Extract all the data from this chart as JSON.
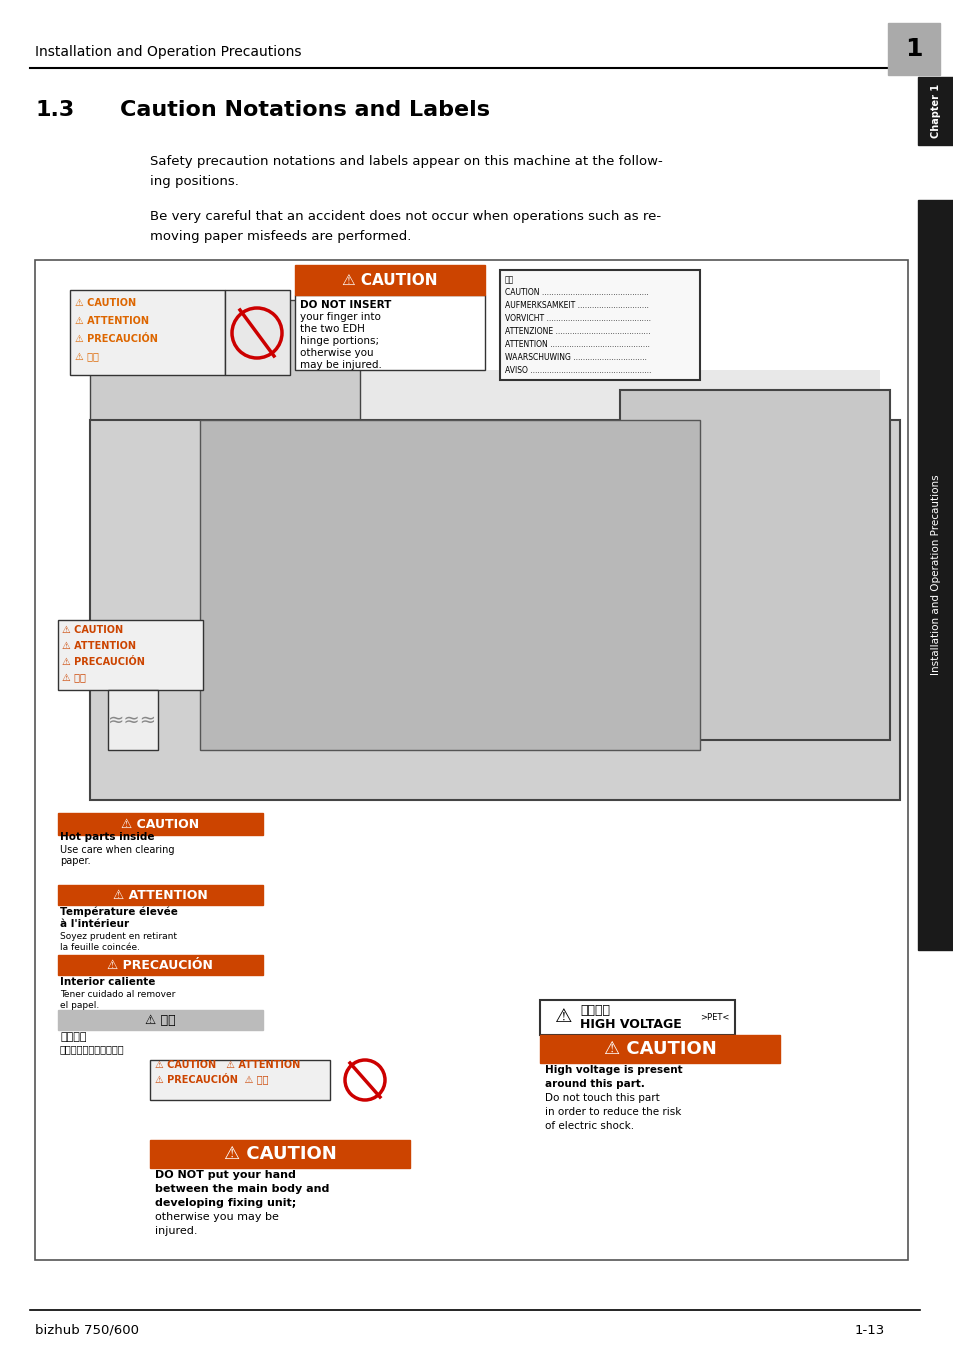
{
  "page_title": "Installation and Operation Precautions",
  "chapter_number": "1",
  "section_number": "1.3",
  "section_title": "Caution Notations and Labels",
  "paragraph1": "Safety precaution notations and labels appear on this machine at the follow-\ning positions.",
  "paragraph2": "Be very careful that an accident does not occur when operations such as re-\nmoving paper misfeeds are performed.",
  "footer_left": "bizhub 750/600",
  "footer_right": "1-13",
  "bg_color": "#ffffff",
  "header_line_color": "#000000",
  "chapter_tab_color": "#1a1a1a",
  "chapter_tab_text_color": "#ffffff",
  "sidebar_color": "#1a1a1a",
  "sidebar_text": "Installation and Operation Precautions",
  "caution_orange": "#e87722",
  "caution_red_bg": "#cc0000",
  "caution_yellow": "#ffdd00",
  "caution_label_bg": "#000000",
  "diagram_border": "#333333",
  "diagram_bg": "#f5f5f5"
}
